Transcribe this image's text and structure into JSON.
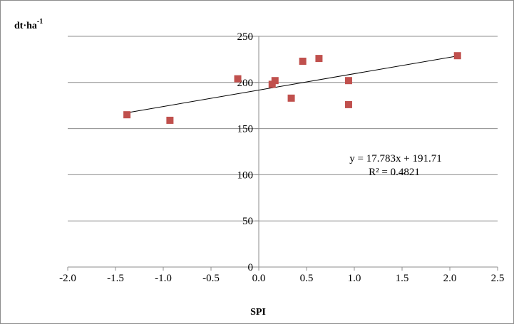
{
  "chart_data": {
    "type": "scatter",
    "xlabel": "SPI",
    "ylabel": "dt·ha",
    "ylabel_sup": "-1",
    "xlim": [
      -2.0,
      2.5
    ],
    "ylim": [
      0,
      250
    ],
    "x_ticks": [
      -2.0,
      -1.5,
      -1.0,
      -0.5,
      0.0,
      0.5,
      1.0,
      1.5,
      2.0,
      2.5
    ],
    "x_tick_labels": [
      "-2.0",
      "-1.5",
      "-1.0",
      "-0.5",
      "0.0",
      "0.5",
      "1.0",
      "1.5",
      "2.0",
      "2.5"
    ],
    "y_ticks": [
      0,
      50,
      100,
      150,
      200,
      250
    ],
    "y_tick_labels": [
      "0",
      "50",
      "100",
      "150",
      "200",
      "250"
    ],
    "grid": "horizontal",
    "points": [
      {
        "x": -1.38,
        "y": 165
      },
      {
        "x": -0.93,
        "y": 159
      },
      {
        "x": -0.22,
        "y": 204
      },
      {
        "x": 0.14,
        "y": 198
      },
      {
        "x": 0.17,
        "y": 202
      },
      {
        "x": 0.34,
        "y": 183
      },
      {
        "x": 0.46,
        "y": 223
      },
      {
        "x": 0.63,
        "y": 226
      },
      {
        "x": 0.94,
        "y": 202
      },
      {
        "x": 0.94,
        "y": 176
      },
      {
        "x": 2.08,
        "y": 229
      }
    ],
    "trendline": {
      "slope": 17.783,
      "intercept": 191.71,
      "x_range": [
        -1.38,
        2.08
      ],
      "equation_label": "y = 17.783x + 191.71",
      "r2_label": "R² = 0.4821"
    },
    "marker_color": "#c0504d",
    "line_color": "#000000",
    "grid_color": "#8c8c8c"
  }
}
